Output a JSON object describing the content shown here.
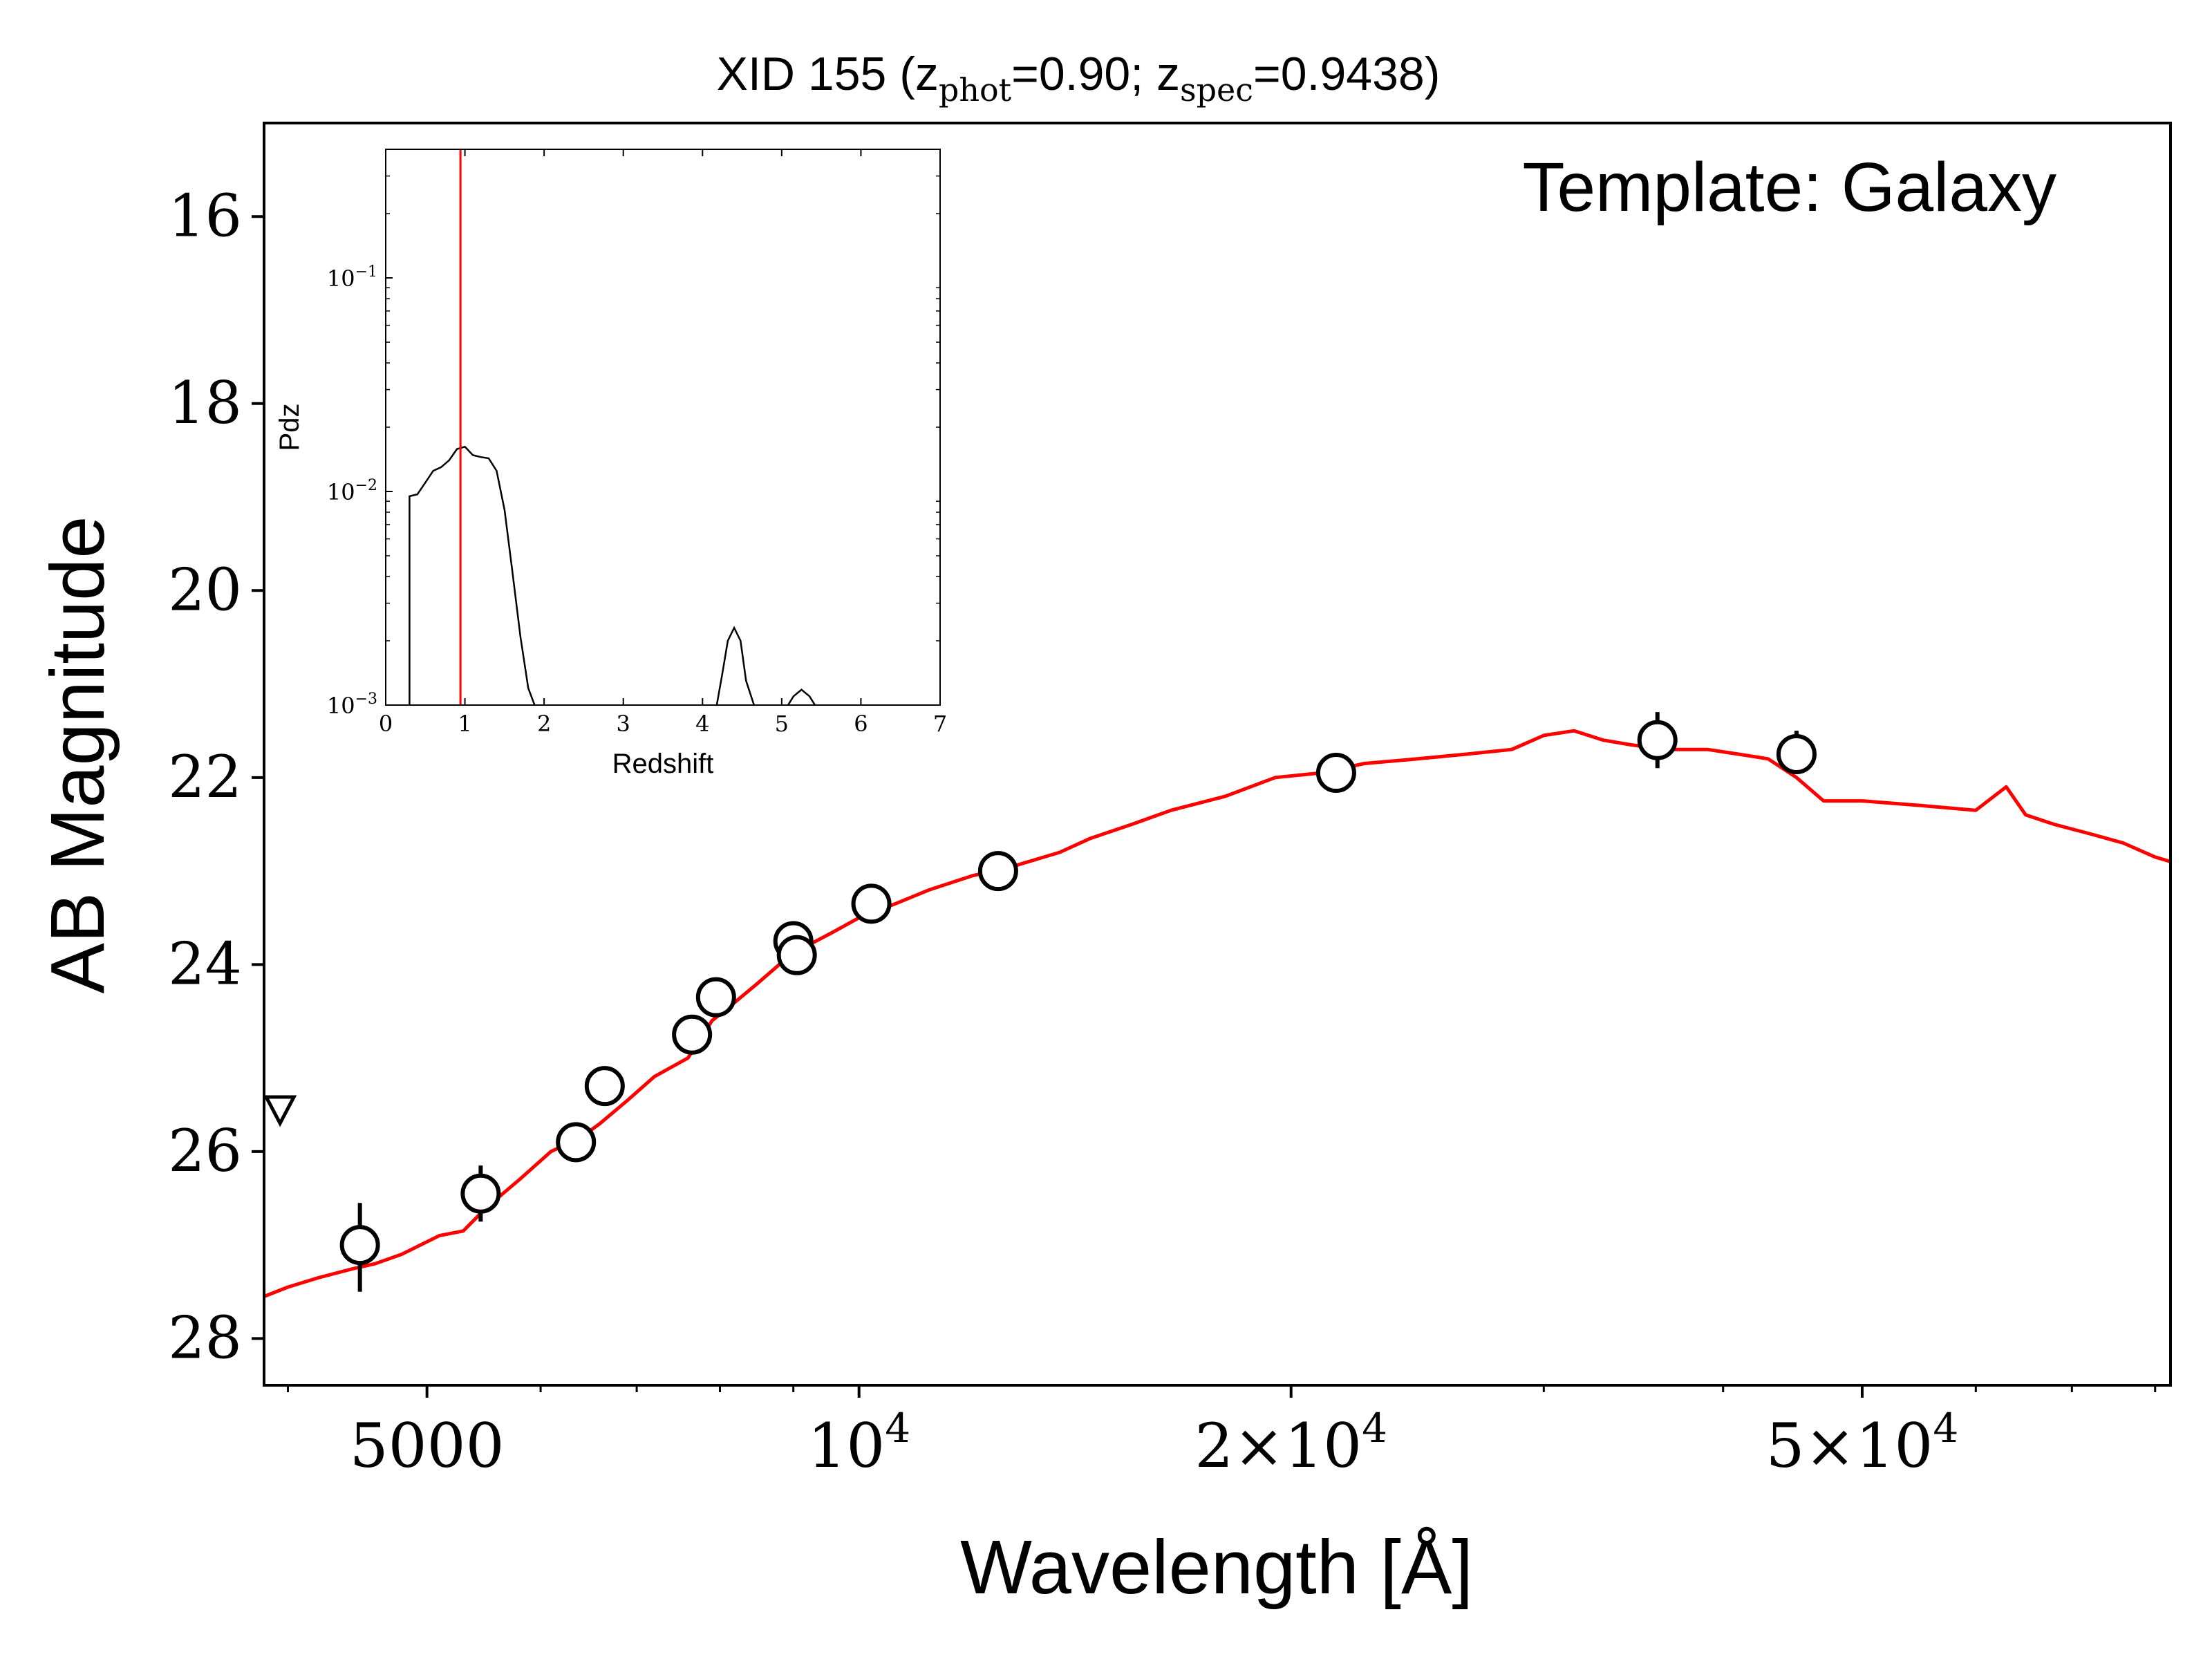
{
  "chart_data": [
    {
      "type": "scatter",
      "title_prefix": "XID 155 (z",
      "title_sub1": "phot",
      "title_mid": "=0.90; z",
      "title_sub2": "spec",
      "title_suffix": "=0.9438)",
      "xlabel": "Wavelength [Å]",
      "ylabel": "AB Magnitude",
      "annotation": "Template: Galaxy",
      "x_scale": "log",
      "xlim": [
        3850,
        82000
      ],
      "ylim": [
        28.5,
        15.0
      ],
      "y_inverted": true,
      "x_tick_labels": [
        {
          "x": 5000,
          "base": "5000",
          "exp": ""
        },
        {
          "x": 10000,
          "base": "10",
          "exp": "4"
        },
        {
          "x": 20000,
          "base": "2×10",
          "exp": "4"
        },
        {
          "x": 50000,
          "base": "5×10",
          "exp": "4"
        }
      ],
      "y_ticks": [
        16,
        18,
        20,
        22,
        24,
        26,
        28
      ],
      "colors": {
        "template": "#ff0000",
        "points": "#000000",
        "axes": "#000000"
      },
      "template_series": {
        "name": "",
        "x": [
          3850,
          4000,
          4200,
          4450,
          4600,
          4800,
          5100,
          5300,
          5500,
          5800,
          6100,
          6400,
          6600,
          6900,
          7200,
          7600,
          7900,
          8200,
          8500,
          8800,
          9200,
          9600,
          10000,
          10600,
          11200,
          12000,
          12800,
          13800,
          14500,
          15500,
          16500,
          18000,
          19500,
          21000,
          22500,
          24500,
          26500,
          28500,
          30000,
          31500,
          33000,
          34500,
          36500,
          39000,
          41000,
          43000,
          45000,
          47000,
          50000,
          55000,
          60000,
          63000,
          65000,
          68000,
          72000,
          76000,
          80000,
          82000
        ],
        "y": [
          27.55,
          27.45,
          27.35,
          27.25,
          27.2,
          27.1,
          26.9,
          26.85,
          26.6,
          26.3,
          26.0,
          25.85,
          25.7,
          25.45,
          25.2,
          25.0,
          24.6,
          24.4,
          24.2,
          24.0,
          23.8,
          23.65,
          23.5,
          23.35,
          23.2,
          23.05,
          22.95,
          22.8,
          22.65,
          22.5,
          22.35,
          22.2,
          22.0,
          21.95,
          21.85,
          21.8,
          21.75,
          21.7,
          21.55,
          21.5,
          21.6,
          21.65,
          21.7,
          21.7,
          21.75,
          21.8,
          22.0,
          22.25,
          22.25,
          22.3,
          22.35,
          22.1,
          22.4,
          22.5,
          22.6,
          22.7,
          22.85,
          22.9
        ]
      },
      "photometry": [
        {
          "x": 4490,
          "y": 27.0,
          "err_lo": 0.45,
          "err_hi": 0.5
        },
        {
          "x": 5450,
          "y": 26.45,
          "err_lo": 0.3,
          "err_hi": 0.3
        },
        {
          "x": 6350,
          "y": 25.9,
          "err_lo": 0.05,
          "err_hi": 0.05
        },
        {
          "x": 6650,
          "y": 25.3,
          "err_lo": 0.05,
          "err_hi": 0.05
        },
        {
          "x": 7650,
          "y": 24.75,
          "err_lo": 0.05,
          "err_hi": 0.05
        },
        {
          "x": 7950,
          "y": 24.35,
          "err_lo": 0.05,
          "err_hi": 0.05
        },
        {
          "x": 9000,
          "y": 23.75,
          "err_lo": 0.05,
          "err_hi": 0.05
        },
        {
          "x": 9050,
          "y": 23.9,
          "err_lo": 0.05,
          "err_hi": 0.05
        },
        {
          "x": 10200,
          "y": 23.35,
          "err_lo": 0.05,
          "err_hi": 0.05
        },
        {
          "x": 12500,
          "y": 23.0,
          "err_lo": 0.05,
          "err_hi": 0.05
        },
        {
          "x": 21500,
          "y": 21.95,
          "err_lo": 0.05,
          "err_hi": 0.05
        },
        {
          "x": 36000,
          "y": 21.6,
          "err_lo": 0.3,
          "err_hi": 0.3
        },
        {
          "x": 45000,
          "y": 21.75,
          "err_lo": 0.25,
          "err_hi": 0.1
        }
      ],
      "upper_limits": [
        {
          "x": 3950,
          "y": 25.55
        }
      ]
    },
    {
      "type": "line",
      "inset": true,
      "xlabel": "Redshift",
      "ylabel": "Pdz",
      "xlim": [
        0,
        7
      ],
      "ylim": [
        0.001,
        0.4
      ],
      "y_scale": "log",
      "x_ticks": [
        0,
        1,
        2,
        3,
        4,
        5,
        6,
        7
      ],
      "y_tick_labels": [
        {
          "y": 0.001,
          "base": "10",
          "exp": "−3"
        },
        {
          "y": 0.01,
          "base": "10",
          "exp": "−2"
        },
        {
          "y": 0.1,
          "base": "10",
          "exp": "−1"
        }
      ],
      "z_spec": 0.9438,
      "colors": {
        "curve": "#000000",
        "marker": "#ff0000"
      },
      "curves": [
        {
          "x": [
            0.3,
            0.3,
            0.4,
            0.5,
            0.6,
            0.7,
            0.8,
            0.9,
            1.0,
            1.1,
            1.2,
            1.3,
            1.4,
            1.5,
            1.6,
            1.7,
            1.8,
            1.88
          ],
          "y": [
            0.001,
            0.0095,
            0.0097,
            0.011,
            0.0125,
            0.013,
            0.014,
            0.0158,
            0.0162,
            0.0148,
            0.0145,
            0.0143,
            0.0125,
            0.0082,
            0.0042,
            0.0021,
            0.0012,
            0.001
          ]
        },
        {
          "x": [
            4.18,
            4.25,
            4.32,
            4.4,
            4.48,
            4.55,
            4.65
          ],
          "y": [
            0.001,
            0.0014,
            0.002,
            0.0023,
            0.002,
            0.0013,
            0.001
          ]
        },
        {
          "x": [
            5.08,
            5.15,
            5.25,
            5.35,
            5.42
          ],
          "y": [
            0.001,
            0.0011,
            0.00118,
            0.0011,
            0.001
          ]
        }
      ]
    }
  ]
}
